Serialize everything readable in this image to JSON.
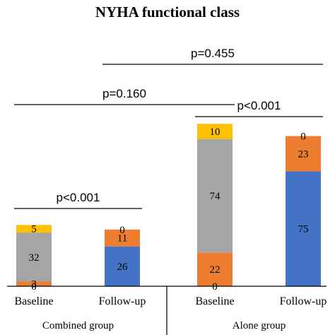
{
  "chart_data": {
    "type": "bar",
    "stacked": true,
    "title": "NYHA functional class",
    "groups": [
      "Combined group",
      "Alone group"
    ],
    "categories": [
      "Baseline",
      "Follow-up",
      "Baseline",
      "Follow-up"
    ],
    "category_group": [
      0,
      0,
      1,
      1
    ],
    "colors": [
      "#4472C4",
      "#ED7D31",
      "#A5A5A5",
      "#FFC000"
    ],
    "series": [
      {
        "values": [
          0,
          26,
          0,
          75
        ]
      },
      {
        "values": [
          3,
          11,
          22,
          23
        ]
      },
      {
        "values": [
          32,
          0,
          74,
          0
        ]
      },
      {
        "values": [
          5,
          0,
          10,
          0
        ]
      }
    ],
    "labels": [
      [
        "0",
        "26",
        "0",
        "75"
      ],
      [
        "3",
        "11",
        "22",
        "23"
      ],
      [
        "32",
        "",
        "74",
        ""
      ],
      [
        "5",
        "0",
        "10",
        "0"
      ]
    ],
    "significance": [
      {
        "text": "p<0.001",
        "from": 0,
        "to": 1
      },
      {
        "text": "p=0.160",
        "from": 0,
        "to": 2
      },
      {
        "text": "p<0.001",
        "from": 2,
        "to": 3
      },
      {
        "text": "p=0.455",
        "from": 1,
        "to": 3
      }
    ],
    "ylim": [
      0,
      110
    ],
    "grid": false,
    "legend": "none"
  }
}
